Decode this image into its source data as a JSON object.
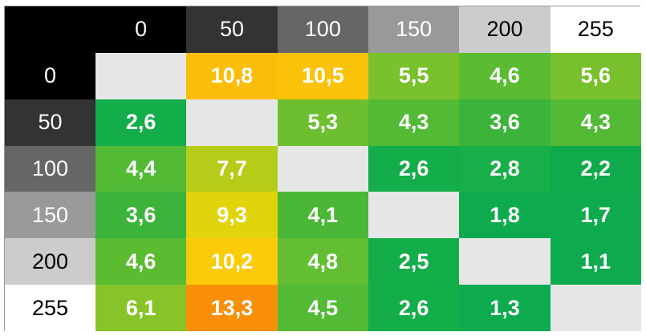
{
  "chart_data": {
    "type": "heatmap",
    "title": "",
    "xlabel": "",
    "ylabel": "",
    "x_categories": [
      "0",
      "50",
      "100",
      "150",
      "200",
      "255"
    ],
    "y_categories": [
      "0",
      "50",
      "100",
      "150",
      "200",
      "255"
    ],
    "values": [
      [
        null,
        "10,8",
        "10,5",
        "5,5",
        "4,6",
        "5,6"
      ],
      [
        "2,6",
        null,
        "5,3",
        "4,3",
        "3,6",
        "4,3"
      ],
      [
        "4,4",
        "7,7",
        null,
        "2,6",
        "2,8",
        "2,2"
      ],
      [
        "3,6",
        "9,3",
        "4,1",
        null,
        "1,8",
        "1,7"
      ],
      [
        "4,6",
        "10,2",
        "4,8",
        "2,5",
        null,
        "1,1"
      ],
      [
        "6,1",
        "13,3",
        "4,5",
        "2,6",
        "1,3",
        null
      ]
    ],
    "header_backgrounds": [
      "#000000",
      "#333333",
      "#666666",
      "#999999",
      "#cccccc",
      "#ffffff"
    ],
    "header_text_colors": [
      "#ffffff",
      "#ffffff",
      "#ffffff",
      "#ffffff",
      "#000000",
      "#000000"
    ],
    "diagonal_color": "#e6e6e6",
    "cell_colors": [
      [
        null,
        "#fbbd0a",
        "#fbc20a",
        "#79c12d",
        "#5bbc32",
        "#78c12d"
      ],
      [
        "#13ad4a",
        null,
        "#6dbf2f",
        "#52ba35",
        "#3cb43b",
        "#52ba35"
      ],
      [
        "#52ba35",
        "#b5cc19",
        null,
        "#13ad4a",
        "#18af48",
        "#0fab4b"
      ],
      [
        "#3cb43b",
        "#e1d40b",
        "#4ab836",
        null,
        "#0dab4d",
        "#0dab4d"
      ],
      [
        "#5bbc32",
        "#fbcb08",
        "#63be31",
        "#13ad4a",
        null,
        "#0dab4d"
      ],
      [
        "#87c42a",
        "#f88f07",
        "#52ba35",
        "#13ad4a",
        "#0dab4d",
        null
      ]
    ]
  }
}
